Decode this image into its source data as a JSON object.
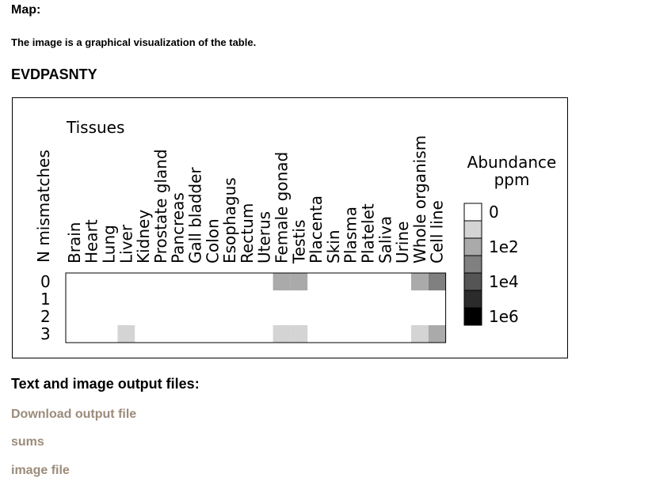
{
  "page": {
    "map_heading": "Map:",
    "description": "The image is a graphical visualization of the table.",
    "sequence": "EVDPASNTY",
    "files_heading": "Text and image output files:",
    "links": [
      "Download output file",
      "sums",
      "image file"
    ]
  },
  "chart_data": {
    "type": "heatmap",
    "title": "Tissues",
    "xlabel": "Tissues",
    "ylabel": "N mismatches",
    "columns": [
      "Brain",
      "Heart",
      "Lung",
      "Liver",
      "Kidney",
      "Prostate gland",
      "Pancreas",
      "Gall bladder",
      "Colon",
      "Esophagus",
      "Rectum",
      "Uterus",
      "Female gonad",
      "Testis",
      "Placenta",
      "Skin",
      "Plasma",
      "Platelet",
      "Saliva",
      "Urine",
      "Whole organism",
      "Cell line"
    ],
    "rows": [
      "0",
      "1",
      "2",
      "3"
    ],
    "legend": {
      "title_line1": "Abundance",
      "title_line2": "ppm",
      "labels": [
        "0",
        "1e2",
        "1e4",
        "1e6"
      ],
      "colors": [
        "#ffffff",
        "#d4d4d4",
        "#aaaaaa",
        "#808080",
        "#555555",
        "#2b2b2b",
        "#000000"
      ]
    },
    "cells": [
      {
        "row": 0,
        "col": 12,
        "level": 2
      },
      {
        "row": 0,
        "col": 13,
        "level": 2
      },
      {
        "row": 0,
        "col": 20,
        "level": 2
      },
      {
        "row": 0,
        "col": 21,
        "level": 3
      },
      {
        "row": 3,
        "col": 3,
        "level": 1
      },
      {
        "row": 3,
        "col": 12,
        "level": 1
      },
      {
        "row": 3,
        "col": 13,
        "level": 1
      },
      {
        "row": 3,
        "col": 20,
        "level": 1
      },
      {
        "row": 3,
        "col": 21,
        "level": 2
      }
    ]
  }
}
